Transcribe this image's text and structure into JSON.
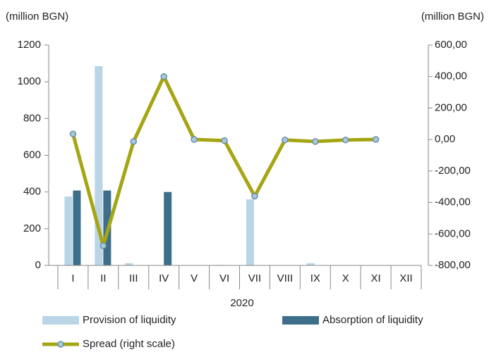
{
  "chart_data": {
    "type": "bar",
    "y_label": "(million BGN)",
    "y2_label": "(million BGN)",
    "x_label": "2020",
    "categories": [
      "I",
      "II",
      "III",
      "IV",
      "V",
      "VI",
      "VII",
      "VIII",
      "IX",
      "X",
      "XI",
      "XII"
    ],
    "series": [
      {
        "name": "Provision of liquidity",
        "color": "#b9d5e6",
        "type": "bar",
        "values": [
          375,
          1085,
          12,
          0,
          0,
          3,
          360,
          2,
          12,
          0,
          0,
          0
        ]
      },
      {
        "name": "Absorption of liquidity",
        "color": "#3d6f8b",
        "type": "bar",
        "values": [
          408,
          408,
          0,
          400,
          0,
          0,
          0,
          0,
          0,
          0,
          0,
          0
        ]
      },
      {
        "name": "Spread (right scale)",
        "color": "#a6a514",
        "type": "line",
        "axis": "y2",
        "values": [
          35,
          -675,
          -13,
          400,
          0,
          -7,
          -360,
          -3,
          -13,
          -3,
          0,
          null
        ]
      }
    ],
    "ylim": [
      0,
      1200
    ],
    "yticks": [
      0,
      200,
      400,
      600,
      800,
      1000,
      1200
    ],
    "y2lim": [
      -800,
      600
    ],
    "y2ticks": [
      {
        "value": -800,
        "label": "-800,00"
      },
      {
        "value": -600,
        "label": "-600,00"
      },
      {
        "value": -400,
        "label": "-400,00"
      },
      {
        "value": -200,
        "label": "-200,00"
      },
      {
        "value": 0,
        "label": "0,00"
      },
      {
        "value": 200,
        "label": "200,00"
      },
      {
        "value": 400,
        "label": "400,00"
      },
      {
        "value": 600,
        "label": "600,00"
      }
    ]
  }
}
